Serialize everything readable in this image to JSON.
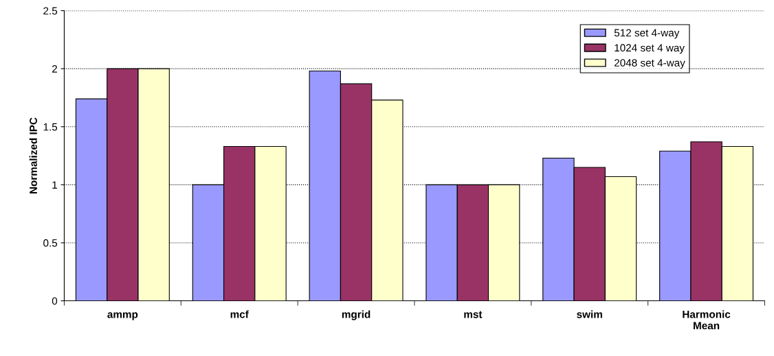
{
  "chart_data": {
    "type": "bar",
    "ylabel": "Normalized IPC",
    "categories": [
      "ammp",
      "mcf",
      "mgrid",
      "mst",
      "swim",
      "Harmonic\nMean"
    ],
    "series": [
      {
        "name": "512 set 4-way",
        "color": "#9999ff",
        "values": [
          1.74,
          1.0,
          1.98,
          1.0,
          1.23,
          1.29
        ]
      },
      {
        "name": "1024 set 4 way",
        "color": "#993366",
        "values": [
          2.0,
          1.33,
          1.87,
          1.0,
          1.15,
          1.37
        ]
      },
      {
        "name": "2048 set 4-way",
        "color": "#ffffcc",
        "values": [
          2.0,
          1.33,
          1.73,
          1.0,
          1.07,
          1.33
        ]
      }
    ],
    "ylim": [
      0,
      2.5
    ],
    "yticks": [
      0,
      0.5,
      1,
      1.5,
      2,
      2.5
    ],
    "grid": "y",
    "legend": "top right"
  }
}
